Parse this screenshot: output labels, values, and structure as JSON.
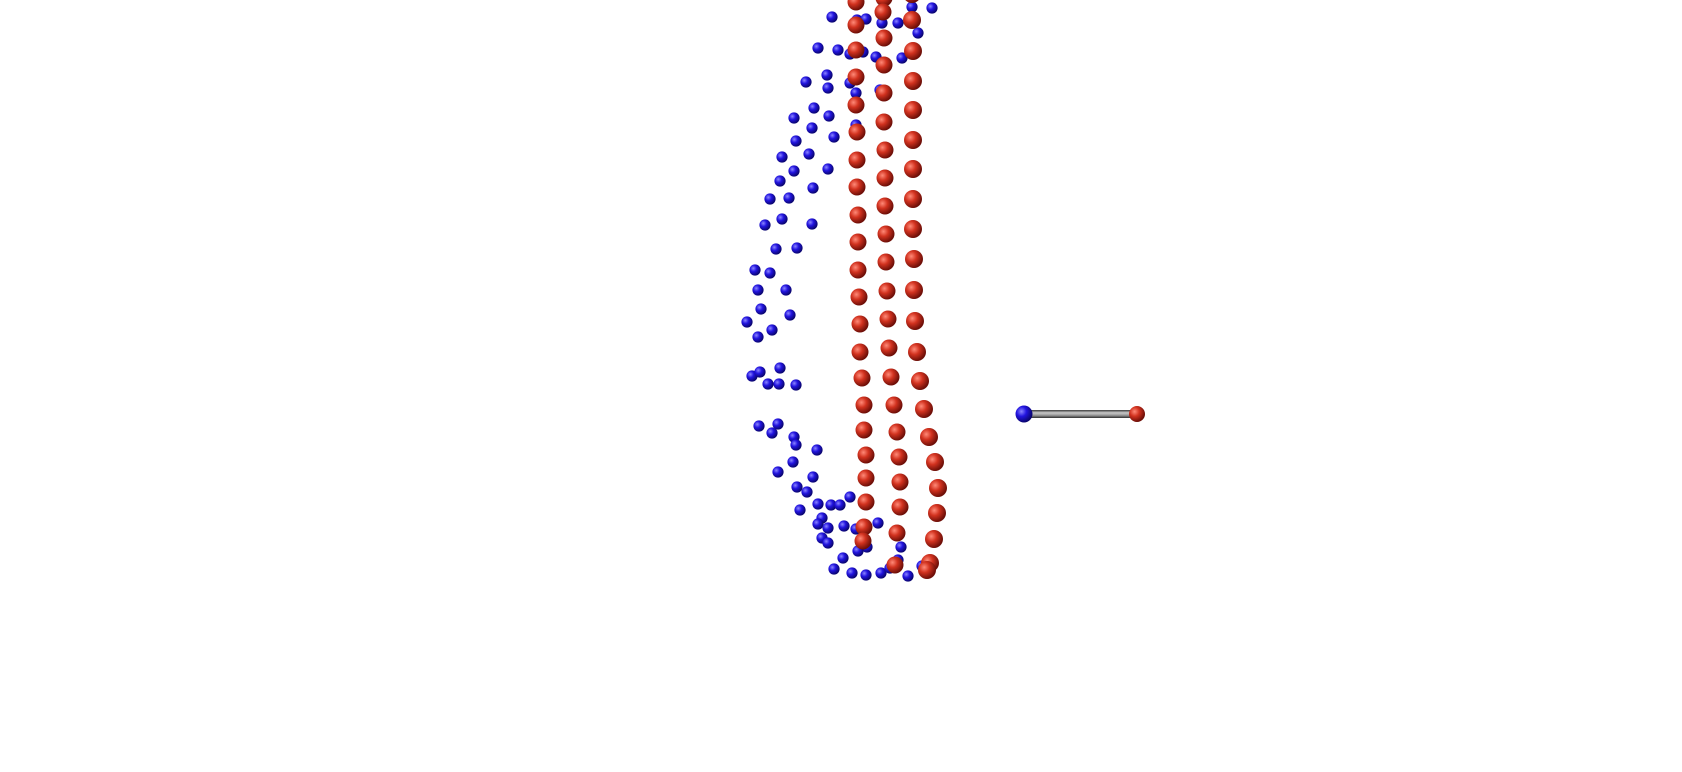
{
  "scene": {
    "background": "#ffffff",
    "atom_colors": {
      "red": "#c0281c",
      "blue": "#1a10d8",
      "bond": "#7a7a7a"
    },
    "object": "molecular-visualization"
  }
}
